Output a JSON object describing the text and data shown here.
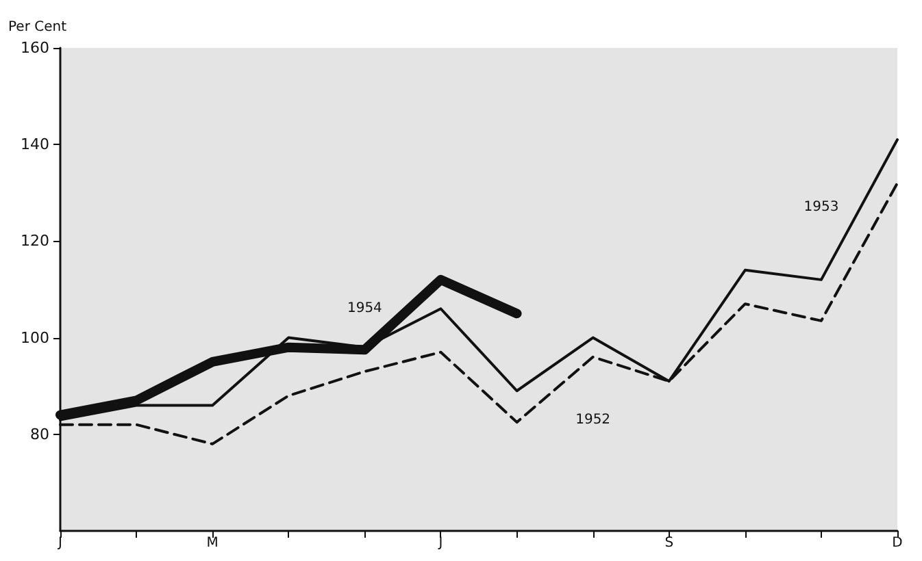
{
  "chart_data": {
    "type": "line",
    "ylabel": "Per Cent",
    "categories": [
      "J",
      null,
      "M",
      null,
      null,
      "J",
      null,
      null,
      "S",
      null,
      null,
      "D"
    ],
    "ylim": [
      60,
      160
    ],
    "yticks": [
      80,
      100,
      120,
      140,
      160
    ],
    "grid": false,
    "legend": false,
    "marker": "none",
    "series": [
      {
        "name": "1952",
        "color": "#111111",
        "line_style": "dashed",
        "values": [
          82,
          82,
          78,
          88,
          93,
          97,
          82.5,
          96,
          91,
          107,
          103.5,
          132
        ]
      },
      {
        "name": "1953",
        "color": "#111111",
        "line_style": "solid",
        "values": [
          83,
          86,
          86,
          100,
          98,
          106,
          89,
          100,
          91,
          114,
          112,
          141
        ]
      },
      {
        "name": "1954",
        "color": "#111111",
        "line_style": "solid",
        "values": [
          84,
          87,
          95,
          98,
          97.5,
          112,
          105,
          null,
          null,
          null,
          null,
          null
        ]
      }
    ]
  }
}
